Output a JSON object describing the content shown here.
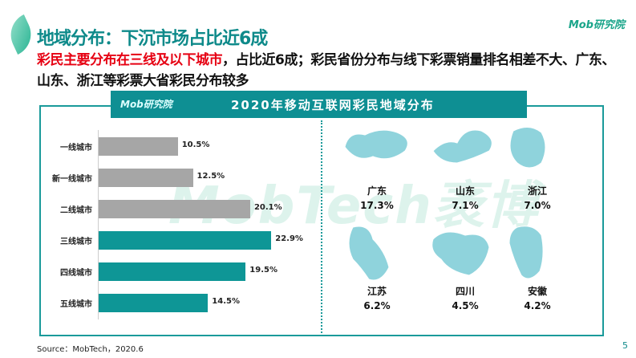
{
  "header": {
    "title": "地域分布：下沉市场占比近6成",
    "logo": "Mob研究院"
  },
  "subtitle": {
    "highlight": "彩民主要分布在三线及以下城市",
    "rest": "，占比近6成；彩民省份分布与线下彩票销量排名相差不大、广东、山东、浙江等彩票大省彩民分布较多"
  },
  "panel": {
    "title": "2020年移动互联网彩民地域分布",
    "logo": "Mob研究院",
    "watermark": "MobTech袤博"
  },
  "chart_data": {
    "type": "bar",
    "orientation": "horizontal",
    "categories": [
      "一线城市",
      "新一线城市",
      "二线城市",
      "三线城市",
      "四线城市",
      "五线城市"
    ],
    "values": [
      10.5,
      12.5,
      20.1,
      22.9,
      19.5,
      14.5
    ],
    "labels": [
      "10.5%",
      "12.5%",
      "20.1%",
      "22.9%",
      "19.5%",
      "14.5%"
    ],
    "colors": [
      "#a6a6a6",
      "#a6a6a6",
      "#a6a6a6",
      "#0e9696",
      "#0e9696",
      "#0e9696"
    ]
  },
  "provinces": [
    {
      "name": "广东",
      "value": "17.3%"
    },
    {
      "name": "山东",
      "value": "7.1%"
    },
    {
      "name": "浙江",
      "value": "7.0%"
    },
    {
      "name": "江苏",
      "value": "6.2%"
    },
    {
      "name": "四川",
      "value": "4.5%"
    },
    {
      "name": "安徽",
      "value": "4.2%"
    }
  ],
  "footer": {
    "source": "Source：MobTech，2020.6",
    "page": "5"
  },
  "colors": {
    "accent": "#0e8f93",
    "highlight": "#e60012",
    "map": "#8fd3dc"
  }
}
